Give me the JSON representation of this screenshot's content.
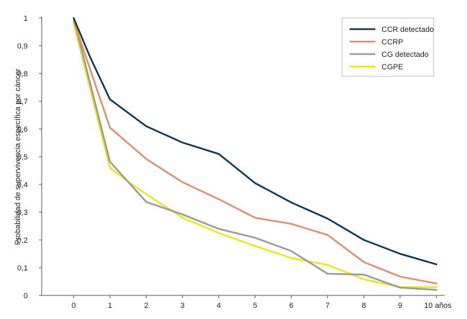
{
  "chart_data": {
    "type": "line",
    "title": "",
    "xlabel": "",
    "ylabel": "Probabilidad de supervivencia específica por cáncer",
    "x": [
      0,
      1,
      2,
      3,
      4,
      5,
      6,
      7,
      8,
      9,
      10
    ],
    "x_tick_labels": [
      "0",
      "1",
      "2",
      "3",
      "4",
      "5",
      "6",
      "7",
      "8",
      "9",
      "10 años"
    ],
    "y_tick_labels": [
      "0",
      "0,1",
      "0,2",
      "0,3",
      "0,4",
      "0,5",
      "0,6",
      "0,7",
      "0,8",
      "0,9",
      "1"
    ],
    "xlim": [
      -0.9,
      10.2
    ],
    "ylim": [
      0,
      1
    ],
    "grid": false,
    "legend_position": "top-right",
    "series": [
      {
        "name": "CCR detectado",
        "color": "#0f3a57",
        "x": [
          0,
          0.45,
          1,
          2,
          3,
          4,
          5,
          6,
          7,
          8,
          9,
          10
        ],
        "values": [
          1,
          0.86,
          0.707,
          0.61,
          0.551,
          0.51,
          0.405,
          0.335,
          0.277,
          0.2,
          0.15,
          0.112
        ]
      },
      {
        "name": "CCRP",
        "color": "#e08e6f",
        "x": [
          0,
          1,
          2,
          3,
          4,
          5,
          6,
          7,
          8,
          9,
          10
        ],
        "values": [
          0.99,
          0.605,
          0.492,
          0.408,
          0.347,
          0.28,
          0.258,
          0.218,
          0.12,
          0.068,
          0.043
        ]
      },
      {
        "name": "CG detectado",
        "color": "#999999",
        "x": [
          0,
          1,
          2,
          3,
          4,
          5,
          6,
          7,
          8,
          9,
          10
        ],
        "values": [
          1,
          0.482,
          0.337,
          0.292,
          0.24,
          0.208,
          0.16,
          0.078,
          0.075,
          0.028,
          0.02
        ]
      },
      {
        "name": "CGPE",
        "color": "#f0e414",
        "x": [
          0,
          1,
          1.5,
          2,
          3,
          4,
          5,
          6,
          7,
          8,
          9,
          10
        ],
        "values": [
          0.98,
          0.46,
          0.41,
          0.365,
          0.28,
          0.225,
          0.178,
          0.135,
          0.11,
          0.058,
          0.03,
          0.03
        ]
      }
    ]
  }
}
